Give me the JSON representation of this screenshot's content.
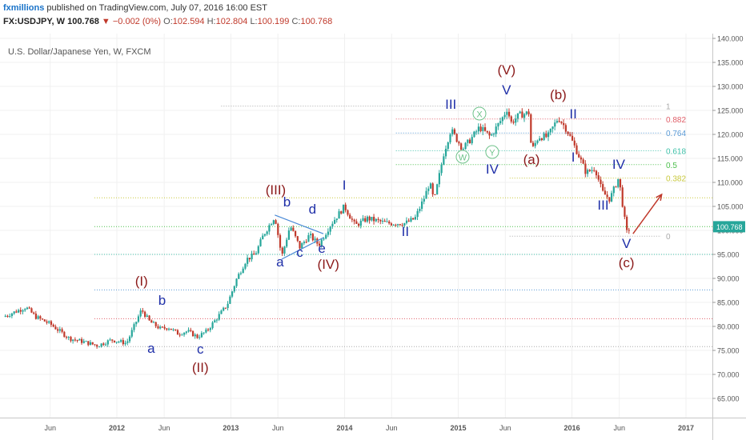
{
  "header": {
    "author": "fxmillions",
    "published_text": "published on TradingView.com, July 07, 2016 16:00 EST",
    "symbol": "FX:USDJPY, W",
    "last": "100.768",
    "change": "▼ −0.002 (0%)",
    "open_label": "O:",
    "open": "102.594",
    "high_label": "H:",
    "high": "102.804",
    "low_label": "L:",
    "low": "100.199",
    "close_label": "C:",
    "close": "100.768"
  },
  "colors": {
    "up": "#26a69a",
    "down": "#c0392b",
    "wave_blue": "#1f2fa8",
    "wave_red": "#8b1a1a",
    "arrow": "#c0392b"
  },
  "chart_data": {
    "type": "candlestick",
    "title": "U.S. Dollar/Japanese Yen, W, FXCM",
    "ylim": [
      61,
      141
    ],
    "y_ticks": [
      "65.000",
      "70.000",
      "75.000",
      "80.000",
      "85.000",
      "90.000",
      "95.000",
      "100.000",
      "105.000",
      "110.000",
      "115.000",
      "120.000",
      "125.000",
      "130.000",
      "135.000",
      "140.000"
    ],
    "last_price_label": "100.768",
    "x_ticks": [
      {
        "label": "Jun",
        "date": "2011-06"
      },
      {
        "label": "2012",
        "date": "2012-01"
      },
      {
        "label": "Jun",
        "date": "2012-06"
      },
      {
        "label": "2013",
        "date": "2013-01"
      },
      {
        "label": "Jun",
        "date": "2013-06"
      },
      {
        "label": "2014",
        "date": "2014-01"
      },
      {
        "label": "Jun",
        "date": "2014-06"
      },
      {
        "label": "2015",
        "date": "2015-01"
      },
      {
        "label": "Jun",
        "date": "2015-06"
      },
      {
        "label": "2016",
        "date": "2016-01"
      },
      {
        "label": "Jun",
        "date": "2016-06"
      },
      {
        "label": "2017",
        "date": "2017-01"
      }
    ],
    "price_path": [
      [
        "2011-01-01",
        82
      ],
      [
        "2011-03-15",
        84
      ],
      [
        "2011-04-15",
        82
      ],
      [
        "2011-06-01",
        80.5
      ],
      [
        "2011-08-01",
        77.5
      ],
      [
        "2011-09-15",
        76.8
      ],
      [
        "2011-10-31",
        76.0
      ],
      [
        "2011-12-15",
        77.2
      ],
      [
        "2012-02-01",
        76.5
      ],
      [
        "2012-03-20",
        83.5
      ],
      [
        "2012-04-15",
        81
      ],
      [
        "2012-05-20",
        79.5
      ],
      [
        "2012-06-15",
        79.8
      ],
      [
        "2012-07-15",
        78.5
      ],
      [
        "2012-08-15",
        79
      ],
      [
        "2012-09-15",
        77.8
      ],
      [
        "2012-10-15",
        79
      ],
      [
        "2012-11-20",
        82
      ],
      [
        "2012-12-20",
        84.5
      ],
      [
        "2013-01-20",
        90
      ],
      [
        "2013-02-20",
        94
      ],
      [
        "2013-03-20",
        95
      ],
      [
        "2013-04-15",
        99
      ],
      [
        "2013-05-22",
        103
      ],
      [
        "2013-06-13",
        94.5
      ],
      [
        "2013-07-10",
        101
      ],
      [
        "2013-08-10",
        96.5
      ],
      [
        "2013-09-10",
        99
      ],
      [
        "2013-10-10",
        97
      ],
      [
        "2013-11-15",
        101
      ],
      [
        "2013-12-31",
        105
      ],
      [
        "2014-02-04",
        101
      ],
      [
        "2014-03-15",
        102.5
      ],
      [
        "2014-05-15",
        101.5
      ],
      [
        "2014-07-15",
        101.5
      ],
      [
        "2014-08-15",
        102.5
      ],
      [
        "2014-09-15",
        107
      ],
      [
        "2014-10-01",
        110
      ],
      [
        "2014-10-15",
        106
      ],
      [
        "2014-11-15",
        116
      ],
      [
        "2014-12-08",
        121
      ],
      [
        "2015-01-15",
        117
      ],
      [
        "2015-02-10",
        119
      ],
      [
        "2015-03-10",
        121.5
      ],
      [
        "2015-04-14",
        119.5
      ],
      [
        "2015-05-28",
        124
      ],
      [
        "2015-06-05",
        125.5
      ],
      [
        "2015-06-20",
        122.5
      ],
      [
        "2015-07-15",
        124
      ],
      [
        "2015-08-15",
        124.5
      ],
      [
        "2015-08-24",
        116.5
      ],
      [
        "2015-09-15",
        119.5
      ],
      [
        "2015-10-15",
        119.5
      ],
      [
        "2015-11-18",
        123.5
      ],
      [
        "2015-12-15",
        121
      ],
      [
        "2016-01-20",
        116
      ],
      [
        "2016-02-15",
        112
      ],
      [
        "2016-03-15",
        113
      ],
      [
        "2016-04-07",
        108
      ],
      [
        "2016-05-01",
        106.5
      ],
      [
        "2016-05-30",
        111
      ],
      [
        "2016-06-24",
        99.5
      ],
      [
        "2016-07-07",
        100.8
      ]
    ],
    "fib_lines": [
      {
        "label": "1",
        "value": 125.9,
        "start": "2012-12-01",
        "color": "#aaaaaa"
      },
      {
        "label": "0.882",
        "value": 123.2,
        "start": "2014-06-15",
        "color": "#e0606a"
      },
      {
        "label": "0.764",
        "value": 120.3,
        "start": "2014-06-15",
        "color": "#5a9ad6"
      },
      {
        "label": "0.618",
        "value": 116.6,
        "start": "2014-06-15",
        "color": "#3ec0a8"
      },
      {
        "label": "0.5",
        "value": 113.7,
        "start": "2014-06-15",
        "color": "#4cbf4c"
      },
      {
        "label": "0.382",
        "value": 110.9,
        "start": "2015-06-15",
        "color": "#c8c83c"
      },
      {
        "label": "0",
        "value": 98.8,
        "start": "2015-06-15",
        "color": "#aaaaaa"
      }
    ],
    "horizontal_lines": [
      {
        "value": 106.8,
        "color": "#c8c83c"
      },
      {
        "value": 100.8,
        "color": "#4cbf4c"
      },
      {
        "value": 95.0,
        "color": "#3ec0a8"
      },
      {
        "value": 87.6,
        "color": "#5a9ad6"
      },
      {
        "value": 81.6,
        "color": "#e0606a"
      },
      {
        "value": 75.8,
        "color": "#aaaaaa"
      }
    ],
    "wave_labels": [
      {
        "text": "(I)",
        "date": "2012-03-20",
        "price": 88.5,
        "color": "red"
      },
      {
        "text": "b",
        "date": "2012-05-25",
        "price": 84.5,
        "color": "blue"
      },
      {
        "text": "a",
        "date": "2012-04-20",
        "price": 74.5,
        "color": "blue"
      },
      {
        "text": "c",
        "date": "2012-09-25",
        "price": 74.3,
        "color": "blue"
      },
      {
        "text": "(II)",
        "date": "2012-09-25",
        "price": 70.5,
        "color": "red"
      },
      {
        "text": "(III)",
        "date": "2013-05-25",
        "price": 107.5,
        "color": "red"
      },
      {
        "text": "b",
        "date": "2013-06-30",
        "price": 105,
        "color": "blue"
      },
      {
        "text": "d",
        "date": "2013-09-20",
        "price": 103.5,
        "color": "blue"
      },
      {
        "text": "a",
        "date": "2013-06-08",
        "price": 92.5,
        "color": "blue"
      },
      {
        "text": "c",
        "date": "2013-08-10",
        "price": 94.5,
        "color": "blue"
      },
      {
        "text": "e",
        "date": "2013-10-20",
        "price": 95.3,
        "color": "blue"
      },
      {
        "text": "(IV)",
        "date": "2013-11-10",
        "price": 92,
        "color": "red"
      },
      {
        "text": "I",
        "date": "2013-12-31",
        "price": 108.5,
        "color": "blue"
      },
      {
        "text": "II",
        "date": "2014-07-15",
        "price": 98.8,
        "color": "blue"
      },
      {
        "text": "III",
        "date": "2014-12-08",
        "price": 125.3,
        "color": "blue"
      },
      {
        "text": "X",
        "date": "2015-03-10",
        "price": 123.5,
        "color": "green",
        "circled": true
      },
      {
        "text": "W",
        "date": "2015-01-15",
        "price": 114.5,
        "color": "green",
        "circled": true
      },
      {
        "text": "Y",
        "date": "2015-04-20",
        "price": 115.5,
        "color": "green",
        "circled": true
      },
      {
        "text": "IV",
        "date": "2015-04-20",
        "price": 111.8,
        "color": "blue"
      },
      {
        "text": "(V)",
        "date": "2015-06-05",
        "price": 132.5,
        "color": "red"
      },
      {
        "text": "V",
        "date": "2015-06-05",
        "price": 128.3,
        "color": "blue"
      },
      {
        "text": "(b)",
        "date": "2015-11-18",
        "price": 127.3,
        "color": "red"
      },
      {
        "text": "(a)",
        "date": "2015-08-24",
        "price": 113.8,
        "color": "red"
      },
      {
        "text": "II",
        "date": "2016-01-05",
        "price": 123.3,
        "color": "blue"
      },
      {
        "text": "I",
        "date": "2016-01-05",
        "price": 114.3,
        "color": "blue"
      },
      {
        "text": "IV",
        "date": "2016-05-30",
        "price": 112.8,
        "color": "blue"
      },
      {
        "text": "III",
        "date": "2016-04-10",
        "price": 104.3,
        "color": "blue"
      },
      {
        "text": "V",
        "date": "2016-06-24",
        "price": 96.3,
        "color": "blue"
      },
      {
        "text": "(c)",
        "date": "2016-06-24",
        "price": 92.3,
        "color": "red"
      }
    ],
    "triangle_lines": [
      [
        [
          "2013-05-22",
          103.2
        ],
        [
          "2013-10-25",
          99.3
        ]
      ],
      [
        [
          "2013-06-13",
          94.0
        ],
        [
          "2013-10-25",
          98.5
        ]
      ]
    ],
    "forecast_arrow": [
      [
        "2016-07-15",
        99.3
      ],
      [
        "2016-10-15",
        107.5
      ]
    ]
  }
}
